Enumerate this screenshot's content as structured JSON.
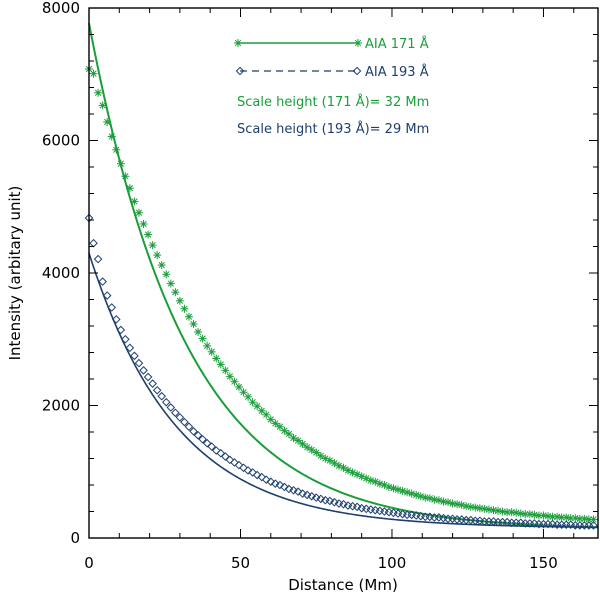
{
  "chart_data": {
    "type": "scatter",
    "title": "",
    "xlabel": "Distance (Mm)",
    "ylabel": "Intensity (arbitary unit)",
    "xlim": [
      0,
      168
    ],
    "ylim": [
      0,
      8000
    ],
    "x_ticks": [
      0,
      50,
      100,
      150
    ],
    "y_ticks": [
      0,
      2000,
      4000,
      6000,
      8000
    ],
    "grid": false,
    "legend_position": "top-center",
    "series": [
      {
        "name": "AIA 171 Å",
        "color": "#1a9e3a",
        "marker": "asterisk",
        "line": "solid",
        "fit": {
          "model": "exponential",
          "amplitude": 7650,
          "scale_height": 32,
          "offset": 120
        },
        "x": [
          0,
          1.5,
          3,
          4.5,
          6,
          7.5,
          9,
          10.5,
          12,
          13.5,
          15,
          16.5,
          18,
          19.5,
          21,
          22.5,
          24,
          25.5,
          27,
          28.5,
          30,
          31.5,
          33,
          34.5,
          36,
          37.5,
          39,
          40.5,
          42,
          43.5,
          45,
          46.5,
          48,
          49.5,
          51,
          52.5,
          54,
          55.5,
          57,
          58.5,
          60,
          61.5,
          63,
          64.5,
          66,
          67.5,
          69,
          70.5,
          72,
          73.5,
          75,
          76.5,
          78,
          79.5,
          81,
          82.5,
          84,
          85.5,
          87,
          88.5,
          90,
          91.5,
          93,
          94.5,
          96,
          97.5,
          99,
          100.5,
          102,
          103.5,
          105,
          106.5,
          108,
          109.5,
          111,
          112.5,
          114,
          115.5,
          117,
          118.5,
          120,
          121.5,
          123,
          124.5,
          126,
          127.5,
          129,
          130.5,
          132,
          133.5,
          135,
          136.5,
          138,
          139.5,
          141,
          142.5,
          144,
          145.5,
          147,
          148.5,
          150,
          151.5,
          153,
          154.5,
          156,
          157.5,
          159,
          160.5,
          162,
          163.5,
          165,
          166.5
        ],
        "y": [
          7080,
          7010,
          6720,
          6530,
          6280,
          6060,
          5860,
          5650,
          5460,
          5280,
          5080,
          4910,
          4740,
          4580,
          4420,
          4270,
          4120,
          3980,
          3840,
          3710,
          3580,
          3460,
          3340,
          3230,
          3110,
          3010,
          2900,
          2810,
          2710,
          2620,
          2530,
          2440,
          2360,
          2280,
          2200,
          2130,
          2050,
          1990,
          1920,
          1860,
          1790,
          1730,
          1680,
          1620,
          1570,
          1510,
          1470,
          1420,
          1370,
          1330,
          1290,
          1240,
          1200,
          1170,
          1130,
          1090,
          1060,
          1020,
          990,
          960,
          930,
          900,
          870,
          850,
          820,
          800,
          770,
          750,
          730,
          710,
          690,
          670,
          650,
          630,
          610,
          600,
          580,
          570,
          550,
          540,
          520,
          510,
          500,
          480,
          470,
          460,
          450,
          440,
          430,
          420,
          410,
          400,
          390,
          390,
          380,
          370,
          360,
          360,
          350,
          340,
          340,
          330,
          320,
          320,
          310,
          310,
          300,
          300,
          290,
          290,
          280,
          280
        ]
      },
      {
        "name": "AIA 193 Å",
        "color": "#1e3f6e",
        "marker": "diamond",
        "line": "dashed",
        "fit": {
          "model": "exponential",
          "amplitude": 4150,
          "scale_height": 29,
          "offset": 150
        },
        "x": [
          0,
          1.5,
          3,
          4.5,
          6,
          7.5,
          9,
          10.5,
          12,
          13.5,
          15,
          16.5,
          18,
          19.5,
          21,
          22.5,
          24,
          25.5,
          27,
          28.5,
          30,
          31.5,
          33,
          34.5,
          36,
          37.5,
          39,
          40.5,
          42,
          43.5,
          45,
          46.5,
          48,
          49.5,
          51,
          52.5,
          54,
          55.5,
          57,
          58.5,
          60,
          61.5,
          63,
          64.5,
          66,
          67.5,
          69,
          70.5,
          72,
          73.5,
          75,
          76.5,
          78,
          79.5,
          81,
          82.5,
          84,
          85.5,
          87,
          88.5,
          90,
          91.5,
          93,
          94.5,
          96,
          97.5,
          99,
          100.5,
          102,
          103.5,
          105,
          106.5,
          108,
          109.5,
          111,
          112.5,
          114,
          115.5,
          117,
          118.5,
          120,
          121.5,
          123,
          124.5,
          126,
          127.5,
          129,
          130.5,
          132,
          133.5,
          135,
          136.5,
          138,
          139.5,
          141,
          142.5,
          144,
          145.5,
          147,
          148.5,
          150,
          151.5,
          153,
          154.5,
          156,
          157.5,
          159,
          160.5,
          162,
          163.5,
          165,
          166.5
        ],
        "y": [
          4830,
          4450,
          4210,
          3870,
          3660,
          3480,
          3300,
          3140,
          3000,
          2870,
          2750,
          2640,
          2530,
          2430,
          2330,
          2230,
          2140,
          2050,
          1970,
          1890,
          1820,
          1750,
          1680,
          1610,
          1550,
          1490,
          1430,
          1380,
          1320,
          1280,
          1230,
          1180,
          1140,
          1100,
          1060,
          1020,
          990,
          950,
          920,
          880,
          850,
          820,
          800,
          770,
          740,
          720,
          700,
          670,
          650,
          630,
          610,
          590,
          570,
          560,
          540,
          520,
          510,
          490,
          480,
          470,
          450,
          440,
          430,
          420,
          410,
          400,
          390,
          380,
          370,
          360,
          350,
          350,
          340,
          330,
          320,
          320,
          310,
          310,
          300,
          290,
          290,
          280,
          280,
          270,
          270,
          260,
          260,
          250,
          250,
          250,
          240,
          240,
          240,
          230,
          230,
          230,
          220,
          220,
          220,
          210,
          210,
          210,
          210,
          200,
          200,
          200,
          200,
          190,
          190,
          190,
          190,
          190
        ]
      }
    ],
    "annotations": [
      {
        "text": "Scale height (171 Å)= 32 Mm",
        "color": "#1a9e3a"
      },
      {
        "text": "Scale height (193 Å)= 29 Mm",
        "color": "#1e3f6e"
      }
    ]
  }
}
